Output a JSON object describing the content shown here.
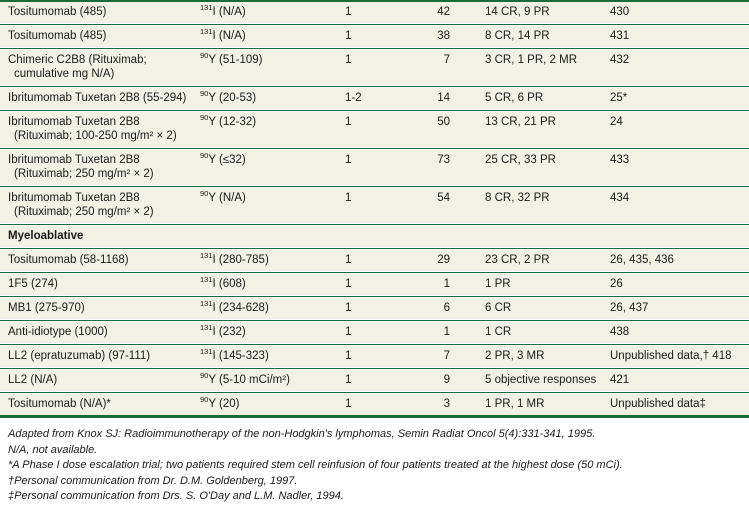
{
  "colors": {
    "rule_green": "#186c38",
    "row_background": "#f2f1e4",
    "text": "#1b1b1b"
  },
  "table": {
    "section_label": "Myeloablative",
    "rows": [
      {
        "agent": "Tositumomab (485)",
        "iso_sup": "131",
        "iso_rest": "I (N/A)",
        "treatments": "1",
        "patients": "42",
        "response": "14 CR, 9 PR",
        "reference": "430"
      },
      {
        "agent": "Tositumomab (485)",
        "iso_sup": "131",
        "iso_rest": "I (N/A)",
        "treatments": "1",
        "patients": "38",
        "response": "8 CR, 14 PR",
        "reference": "431"
      },
      {
        "agent": "Chimeric C2B8 (Rituximab;",
        "agent2": "cumulative mg N/A)",
        "iso_sup": "90",
        "iso_rest": "Y (51-109)",
        "treatments": "1",
        "patients": "7",
        "response": "3 CR, 1 PR, 2 MR",
        "reference": "432"
      },
      {
        "agent": "Ibritumomab Tuxetan 2B8 (55-294)",
        "iso_sup": "90",
        "iso_rest": "Y (20-53)",
        "treatments": "1-2",
        "patients": "14",
        "response": "5 CR, 6 PR",
        "reference": "25*"
      },
      {
        "agent": "Ibritumomab Tuxetan 2B8",
        "agent2": "(Rituximab; 100-250 mg/m² × 2)",
        "iso_sup": "90",
        "iso_rest": "Y (12-32)",
        "treatments": "1",
        "patients": "50",
        "response": "13 CR, 21 PR",
        "reference": "24"
      },
      {
        "agent": "Ibritumomab Tuxetan 2B8",
        "agent2": "(Rituximab; 250 mg/m² × 2)",
        "iso_sup": "90",
        "iso_rest": "Y (≤32)",
        "treatments": "1",
        "patients": "73",
        "response": "25 CR, 33 PR",
        "reference": "433"
      },
      {
        "agent": "Ibritumomab Tuxetan 2B8",
        "agent2": "(Rituximab; 250 mg/m² × 2)",
        "iso_sup": "90",
        "iso_rest": "Y (N/A)",
        "treatments": "1",
        "patients": "54",
        "response": "8 CR, 32 PR",
        "reference": "434"
      },
      {
        "agent": "Tositumomab (58-1168)",
        "iso_sup": "131",
        "iso_rest": "I (280-785)",
        "treatments": "1",
        "patients": "29",
        "response": "23 CR, 2 PR",
        "reference": "26, 435, 436"
      },
      {
        "agent": "1F5 (274)",
        "iso_sup": "131",
        "iso_rest": "I (608)",
        "treatments": "1",
        "patients": "1",
        "response": "1 PR",
        "reference": "26"
      },
      {
        "agent": "MB1 (275-970)",
        "iso_sup": "131",
        "iso_rest": "I (234-628)",
        "treatments": "1",
        "patients": "6",
        "response": "6 CR",
        "reference": "26, 437"
      },
      {
        "agent": "Anti-idiotype (1000)",
        "iso_sup": "131",
        "iso_rest": "I (232)",
        "treatments": "1",
        "patients": "1",
        "response": "1 CR",
        "reference": "438"
      },
      {
        "agent": "LL2 (epratuzumab) (97-111)",
        "iso_sup": "131",
        "iso_rest": "I (145-323)",
        "treatments": "1",
        "patients": "7",
        "response": "2 PR, 3 MR",
        "reference": "Unpublished data,† 418"
      },
      {
        "agent": "LL2 (N/A)",
        "iso_sup": "90",
        "iso_rest": "Y (5-10 mCi/m²)",
        "treatments": "1",
        "patients": "9",
        "response": "5 objective responses",
        "reference": "421"
      },
      {
        "agent": "Tositumomab (N/A)*",
        "iso_sup": "90",
        "iso_rest": "Y (20)",
        "treatments": "1",
        "patients": "3",
        "response": "1 PR, 1 MR",
        "reference": "Unpublished data‡"
      }
    ]
  },
  "footnotes": [
    "Adapted from Knox SJ: Radioimmunotherapy of the non-Hodgkin's lymphomas, Semin Radiat Oncol 5(4):331-341, 1995.",
    "N/A, not available.",
    "*A Phase I dose escalation trial; two patients required stem cell reinfusion of four patients treated at the highest dose (50 mCi).",
    "†Personal communication from Dr. D.M. Goldenberg, 1997.",
    "‡Personal communication from Drs. S. O'Day and L.M. Nadler, 1994."
  ]
}
